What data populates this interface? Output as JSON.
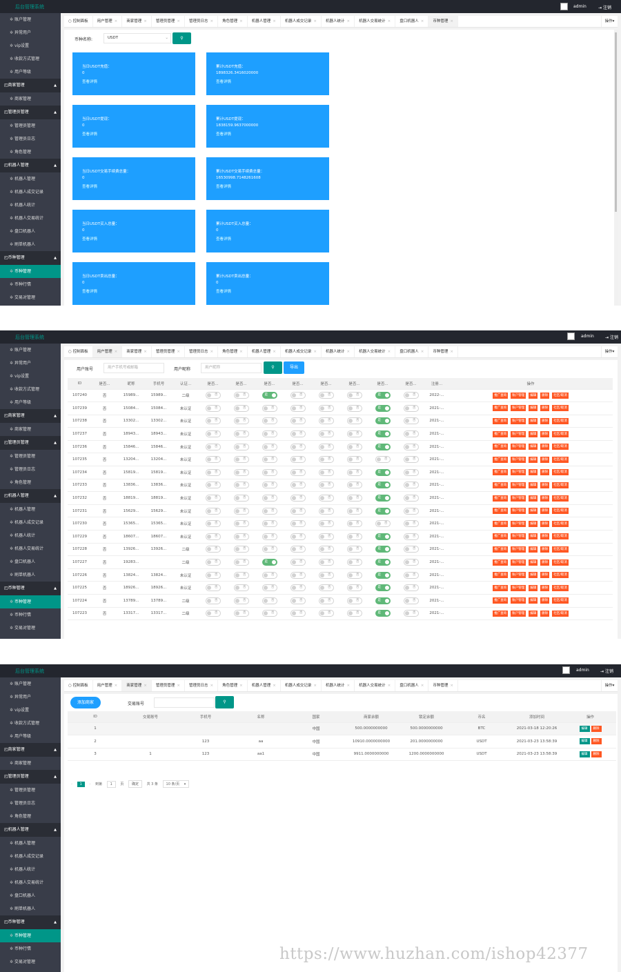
{
  "app": {
    "brand": "后台管理系统",
    "admin": "admin",
    "logout": "注销",
    "tab_ops": "操作"
  },
  "sidebar": [
    {
      "type": "item",
      "label": "账户管理"
    },
    {
      "type": "item",
      "label": "异常用户"
    },
    {
      "type": "item",
      "label": "vip设置"
    },
    {
      "type": "item",
      "label": "收款方式管理"
    },
    {
      "type": "item",
      "label": "用户等级"
    },
    {
      "type": "group",
      "label": "商家管理"
    },
    {
      "type": "item",
      "label": "商家管理"
    },
    {
      "type": "group",
      "label": "管理员管理"
    },
    {
      "type": "item",
      "label": "管理员管理"
    },
    {
      "type": "item",
      "label": "管理员日志"
    },
    {
      "type": "item",
      "label": "角色管理"
    },
    {
      "type": "group",
      "label": "机器人管理"
    },
    {
      "type": "item",
      "label": "机器人管理"
    },
    {
      "type": "item",
      "label": "机器人成交记录"
    },
    {
      "type": "item",
      "label": "机器人统计"
    },
    {
      "type": "item",
      "label": "机器人交易统计"
    },
    {
      "type": "item",
      "label": "盘口机器人"
    },
    {
      "type": "item",
      "label": "刷单机器人"
    },
    {
      "type": "group",
      "label": "币种管理"
    },
    {
      "type": "item",
      "label": "币种管理",
      "active": true
    },
    {
      "type": "item",
      "label": "币种行情"
    },
    {
      "type": "item",
      "label": "交易对管理"
    }
  ],
  "tabs": [
    "控制面板",
    "用户管理",
    "商家管理",
    "管理员管理",
    "管理员日志",
    "角色管理",
    "机器人管理",
    "机器人成交记录",
    "机器人统计",
    "机器人交易统计",
    "盘口机器人",
    "币种管理"
  ],
  "screen1": {
    "filter_label": "币种名称:",
    "filter_value": "USDT",
    "cards": [
      {
        "title": "当日USDT充值：",
        "value": "0",
        "detail": "查看详情"
      },
      {
        "title": "累计USDT充值：",
        "value": "1898326.3416020000",
        "detail": "查看详情"
      },
      {
        "title": "当日USDT提现：",
        "value": "0",
        "detail": "查看详情"
      },
      {
        "title": "累计USDT提现：",
        "value": "1838159.9637000000",
        "detail": "查看详情"
      },
      {
        "title": "当日USDT交易手续费总量：",
        "value": "0",
        "detail": "查看详情"
      },
      {
        "title": "累计USDT交易手续费总量：",
        "value": "16530998.7148261608",
        "detail": "查看详情"
      },
      {
        "title": "当日USDT买入总量：",
        "value": "0",
        "detail": "查看详情"
      },
      {
        "title": "累计USDT买入总量：",
        "value": "0",
        "detail": "查看详情"
      },
      {
        "title": "当日USDT卖出总量：",
        "value": "0",
        "detail": "查看详情"
      },
      {
        "title": "累计USDT卖出总量：",
        "value": "0",
        "detail": "查看详情"
      }
    ]
  },
  "screen2": {
    "search": {
      "account_label": "用户账号",
      "account_placeholder": "用户手机号或邮箱",
      "nick_label": "用户昵称",
      "nick_placeholder": "用户昵称",
      "export": "导出"
    },
    "headers": [
      "ID",
      "是否...",
      "昵称",
      "手机号",
      "认证...",
      "是否...",
      "是否...",
      "是否...",
      "是否...",
      "是否...",
      "是否...",
      "是否...",
      "是否...",
      "注册...",
      "操作"
    ],
    "switch_on": "是",
    "switch_off": "否",
    "actions": [
      "推广查询",
      "账户管理",
      "编辑",
      "删除",
      "社区/取消"
    ],
    "rows": [
      {
        "id": "107240",
        "flag": "否",
        "nick": "15989...",
        "phone": "15989...",
        "auth": "二级",
        "s3": true,
        "s7": true,
        "date": "2022-..."
      },
      {
        "id": "107239",
        "flag": "否",
        "nick": "15084...",
        "phone": "15084...",
        "auth": "未认证",
        "s3": false,
        "s7": true,
        "date": "2021-..."
      },
      {
        "id": "107238",
        "flag": "否",
        "nick": "13302...",
        "phone": "13302...",
        "auth": "未认证",
        "s3": false,
        "s7": true,
        "date": "2021-..."
      },
      {
        "id": "107237",
        "flag": "否",
        "nick": "18943...",
        "phone": "18943...",
        "auth": "未认证",
        "s3": false,
        "s7": true,
        "date": "2021-..."
      },
      {
        "id": "107236",
        "flag": "否",
        "nick": "15846...",
        "phone": "15846...",
        "auth": "未认证",
        "s3": false,
        "s7": true,
        "date": "2021-..."
      },
      {
        "id": "107235",
        "flag": "否",
        "nick": "13204...",
        "phone": "13204...",
        "auth": "未认证",
        "s3": false,
        "s7": false,
        "date": "2021-..."
      },
      {
        "id": "107234",
        "flag": "否",
        "nick": "15819...",
        "phone": "15819...",
        "auth": "未认证",
        "s3": false,
        "s7": true,
        "date": "2021-..."
      },
      {
        "id": "107233",
        "flag": "否",
        "nick": "13836...",
        "phone": "13836...",
        "auth": "未认证",
        "s3": false,
        "s7": true,
        "date": "2021-..."
      },
      {
        "id": "107232",
        "flag": "否",
        "nick": "18819...",
        "phone": "18819...",
        "auth": "未认证",
        "s3": false,
        "s7": true,
        "date": "2021-..."
      },
      {
        "id": "107231",
        "flag": "否",
        "nick": "15629...",
        "phone": "15629...",
        "auth": "未认证",
        "s3": false,
        "s7": true,
        "date": "2021-..."
      },
      {
        "id": "107230",
        "flag": "否",
        "nick": "15365...",
        "phone": "15365...",
        "auth": "未认证",
        "s3": false,
        "s7": false,
        "date": "2021-..."
      },
      {
        "id": "107229",
        "flag": "否",
        "nick": "18607...",
        "phone": "18607...",
        "auth": "未认证",
        "s3": false,
        "s7": true,
        "date": "2021-..."
      },
      {
        "id": "107228",
        "flag": "否",
        "nick": "13926...",
        "phone": "13926...",
        "auth": "二级",
        "s3": false,
        "s7": true,
        "date": "2021-..."
      },
      {
        "id": "107227",
        "flag": "否",
        "nick": "19283...",
        "phone": "",
        "auth": "二级",
        "s3": true,
        "s7": true,
        "date": "2021-..."
      },
      {
        "id": "107226",
        "flag": "否",
        "nick": "13824...",
        "phone": "13824...",
        "auth": "未认证",
        "s3": false,
        "s7": true,
        "date": "2021-..."
      },
      {
        "id": "107225",
        "flag": "否",
        "nick": "18926...",
        "phone": "18926...",
        "auth": "未认证",
        "s3": false,
        "s7": true,
        "date": "2021-..."
      },
      {
        "id": "107224",
        "flag": "否",
        "nick": "13789...",
        "phone": "13789...",
        "auth": "二级",
        "s3": false,
        "s7": true,
        "date": "2021-..."
      },
      {
        "id": "107223",
        "flag": "否",
        "nick": "13317...",
        "phone": "13317...",
        "auth": "二级",
        "s3": false,
        "s7": true,
        "date": "2021-..."
      }
    ]
  },
  "screen3": {
    "add_button": "添加商家",
    "search_label": "交易账号",
    "headers": [
      "ID",
      "交易账号",
      "手机号",
      "名称",
      "国家",
      "商家余额",
      "锁定余额",
      "币名",
      "添加时间",
      "操作"
    ],
    "row_actions": [
      "编辑",
      "删除"
    ],
    "rows": [
      {
        "id": "1",
        "account": "",
        "phone": "",
        "name": "",
        "country": "中国",
        "balance": "500.0000000000",
        "locked": "500.0000000000",
        "coin": "BTC",
        "time": "2021-03-18 12:20:26"
      },
      {
        "id": "2",
        "account": "",
        "phone": "123",
        "name": "aa",
        "country": "中国",
        "balance": "10910.0000000000",
        "locked": "201.0000000000",
        "coin": "USDT",
        "time": "2021-03-23 13:58:39"
      },
      {
        "id": "3",
        "account": "1",
        "phone": "123",
        "name": "aa1",
        "country": "中国",
        "balance": "9911.0000000000",
        "locked": "1200.0000000000",
        "coin": "USDT",
        "time": "2021-03-23 13:58:39"
      }
    ],
    "pager": {
      "current": "1",
      "goto_label": "到第",
      "goto_value": "1",
      "page_unit": "页",
      "confirm": "确定",
      "total": "共 3 条",
      "per_page": "10 条/页"
    }
  },
  "watermark": "https://www.huzhan.com/ishop42377",
  "colors": {
    "sidebar": "#393d49",
    "topbar": "#23262e",
    "accent": "#009688",
    "card": "#1e9fff",
    "danger": "#ff5722",
    "switch_on": "#5fb878"
  }
}
